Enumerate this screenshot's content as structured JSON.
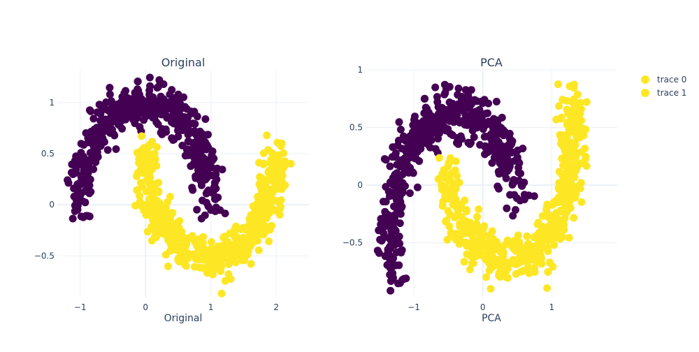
{
  "colors": {
    "purple": "#440154",
    "yellow": "#fde725",
    "text": "#2a3f5f",
    "grid": "#ebf0f8"
  },
  "legend": {
    "items": [
      {
        "label": "trace 0"
      },
      {
        "label": "trace 1"
      }
    ]
  },
  "chart_data": [
    {
      "type": "scatter",
      "title": "Original",
      "xlabel": "Original",
      "ylabel": "",
      "xlim": [
        -1.35,
        2.5
      ],
      "ylim": [
        -0.9,
        1.32
      ],
      "xticks": [
        -1,
        0,
        1,
        2
      ],
      "xtick_labels": [
        "−1",
        "0",
        "1",
        "2"
      ],
      "yticks": [
        -0.5,
        0,
        0.5,
        1
      ],
      "ytick_labels": [
        "−0.5",
        "0",
        "0.5",
        "1"
      ],
      "grid": true,
      "series": [
        {
          "name": "trace 0",
          "shape": "upper-moon",
          "center": [
            0,
            0
          ],
          "radius": 1.0,
          "noise": 0.1,
          "point_count": 500
        },
        {
          "name": "trace 1",
          "shape": "lower-moon",
          "center": [
            1,
            0.5
          ],
          "radius": 1.0,
          "noise": 0.1,
          "point_count": 500
        }
      ]
    },
    {
      "type": "scatter",
      "title": "PCA",
      "xlabel": "PCA",
      "ylabel": "",
      "xlim": [
        -1.7,
        1.95
      ],
      "ylim": [
        -0.97,
        1.0
      ],
      "xticks": [
        -1,
        0,
        1
      ],
      "xtick_labels": [
        "−1",
        "0",
        "1"
      ],
      "yticks": [
        -0.5,
        0,
        0.5,
        1
      ],
      "ytick_labels": [
        "−0.5",
        "0",
        "0.5",
        "1"
      ],
      "grid": true,
      "series": [
        {
          "name": "trace 0",
          "shape": "upper-moon-rotated",
          "point_count": 500
        },
        {
          "name": "trace 1",
          "shape": "lower-moon-rotated",
          "point_count": 500
        }
      ]
    }
  ]
}
